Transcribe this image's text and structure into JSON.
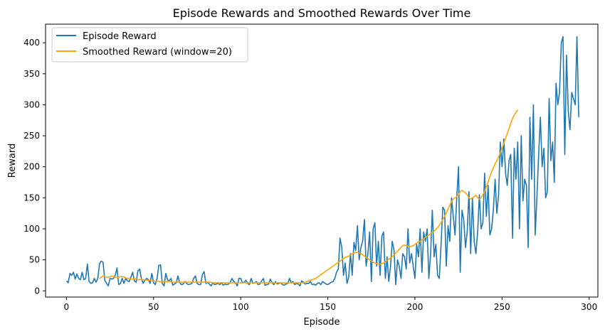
{
  "chart_data": {
    "type": "line",
    "title": "Episode Rewards and Smoothed Rewards Over Time",
    "xlabel": "Episode",
    "ylabel": "Reward",
    "xlim": [
      -12,
      305
    ],
    "ylim": [
      -10,
      430
    ],
    "x_ticks": [
      0,
      50,
      100,
      150,
      200,
      250,
      300
    ],
    "y_ticks": [
      0,
      50,
      100,
      150,
      200,
      250,
      300,
      350,
      400
    ],
    "grid": false,
    "legend_position": "top-left",
    "series": [
      {
        "name": "Episode Reward",
        "color": "#1f77b4",
        "x_start": 0,
        "values": [
          16,
          13,
          28,
          25,
          30,
          19,
          27,
          20,
          18,
          30,
          18,
          20,
          43,
          15,
          12,
          13,
          20,
          14,
          20,
          44,
          48,
          46,
          17,
          12,
          8,
          20,
          19,
          20,
          25,
          37,
          10,
          12,
          20,
          12,
          20,
          16,
          15,
          22,
          30,
          16,
          14,
          32,
          35,
          20,
          12,
          17,
          20,
          18,
          12,
          28,
          13,
          10,
          20,
          41,
          42,
          12,
          8,
          28,
          18,
          16,
          20,
          9,
          11,
          13,
          24,
          13,
          10,
          11,
          15,
          12,
          10,
          11,
          12,
          20,
          24,
          12,
          10,
          10,
          26,
          31,
          12,
          14,
          11,
          8,
          13,
          10,
          11,
          12,
          10,
          13,
          9,
          11,
          10,
          11,
          14,
          20,
          15,
          13,
          8,
          20,
          20,
          13,
          14,
          17,
          12,
          10,
          20,
          12,
          13,
          15,
          10,
          11,
          16,
          20,
          9,
          10,
          11,
          19,
          13,
          10,
          15,
          11,
          12,
          13,
          10,
          9,
          11,
          12,
          20,
          13,
          15,
          10,
          12,
          11,
          8,
          16,
          14,
          11,
          12,
          12,
          15,
          10,
          11,
          9,
          12,
          13,
          10,
          15,
          13,
          11,
          10,
          12,
          14,
          15,
          20,
          30,
          35,
          85,
          70,
          25,
          45,
          12,
          22,
          60,
          25,
          78,
          65,
          105,
          50,
          70,
          80,
          115,
          40,
          60,
          95,
          15,
          100,
          110,
          40,
          80,
          25,
          88,
          95,
          20,
          55,
          15,
          40,
          80,
          65,
          10,
          50,
          40,
          20,
          60,
          55,
          35,
          100,
          45,
          60,
          40,
          20,
          75,
          55,
          100,
          30,
          95,
          80,
          100,
          20,
          60,
          130,
          55,
          75,
          25,
          20,
          75,
          135,
          130,
          40,
          105,
          80,
          150,
          120,
          90,
          150,
          200,
          30,
          130,
          115,
          70,
          95,
          160,
          60,
          150,
          80,
          60,
          95,
          155,
          100,
          110,
          190,
          120,
          170,
          90,
          100,
          130,
          180,
          125,
          155,
          240,
          200,
          245,
          190,
          170,
          210,
          220,
          85,
          230,
          180,
          240,
          100,
          250,
          145,
          180,
          170,
          70,
          280,
          180,
          300,
          90,
          150,
          220,
          280,
          200,
          230,
          150,
          160,
          310,
          210,
          240,
          175,
          335,
          300,
          320,
          400,
          410,
          220,
          380,
          290,
          260,
          320,
          310,
          300,
          410,
          280
        ]
      },
      {
        "name": "Smoothed Reward (window=20)",
        "color": "#ffa500",
        "x_start": 19,
        "values": [
          20,
          22,
          24,
          23,
          22,
          22,
          23,
          24,
          23,
          22,
          22,
          22,
          23,
          23,
          22,
          21,
          20,
          20,
          19,
          19,
          19,
          19,
          18,
          18,
          19,
          18,
          18,
          17,
          17,
          17,
          16,
          16,
          16,
          16,
          15,
          15,
          15,
          15,
          15,
          15,
          15,
          15,
          14,
          14,
          14,
          14,
          14,
          14,
          14,
          14,
          14,
          14,
          14,
          14,
          14,
          14,
          14,
          14,
          14,
          14,
          14,
          14,
          14,
          14,
          14,
          13,
          13,
          13,
          13,
          13,
          13,
          13,
          13,
          13,
          13,
          13,
          13,
          13,
          13,
          13,
          13,
          13,
          13,
          13,
          13,
          13,
          13,
          13,
          13,
          13,
          13,
          13,
          13,
          13,
          13,
          13,
          13,
          13,
          13,
          13,
          13,
          13,
          13,
          13,
          13,
          13,
          13,
          13,
          13,
          13,
          13,
          13,
          13,
          13,
          13,
          13,
          13,
          13,
          14,
          15,
          16,
          17,
          18,
          19,
          20,
          22,
          24,
          26,
          28,
          30,
          32,
          34,
          36,
          38,
          40,
          42,
          44,
          46,
          48,
          50,
          52,
          54,
          55,
          56,
          58,
          60,
          61,
          62,
          62,
          61,
          60,
          58,
          56,
          54,
          52,
          50,
          48,
          46,
          45,
          44,
          43,
          43,
          44,
          45,
          47,
          49,
          51,
          53,
          55,
          58,
          61,
          64,
          67,
          70,
          73,
          74,
          73,
          72,
          71,
          72,
          73,
          75,
          77,
          79,
          80,
          82,
          84,
          86,
          88,
          90,
          92,
          94,
          96,
          99,
          102,
          106,
          110,
          115,
          120,
          126,
          132,
          138,
          144,
          148,
          150,
          152,
          155,
          160,
          162,
          160,
          158,
          155,
          150,
          148,
          150,
          152,
          154,
          150,
          148,
          150,
          155,
          160,
          168,
          176,
          184,
          192,
          198,
          205,
          210,
          216,
          222,
          230,
          238,
          246,
          254,
          262,
          270,
          278,
          283,
          288,
          292
        ]
      }
    ]
  }
}
